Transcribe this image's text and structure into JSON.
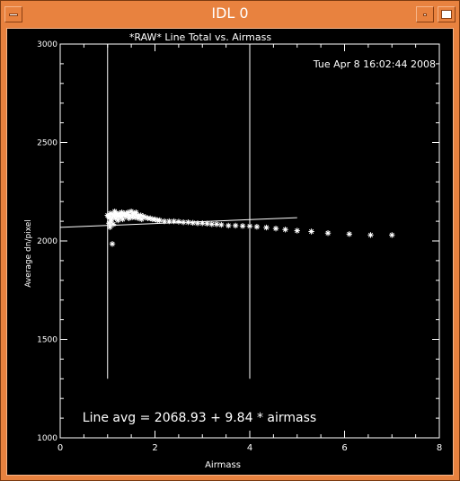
{
  "window": {
    "title": "IDL 0"
  },
  "chart_data": {
    "type": "scatter",
    "title": "*RAW* Line Total vs. Airmass",
    "timestamp": "Tue Apr  8 16:02:44 2008",
    "xlabel": "Airmass",
    "ylabel": "Average dn/pixel",
    "xlim": [
      0,
      8
    ],
    "ylim": [
      1000,
      3000
    ],
    "xticks": [
      0,
      2,
      4,
      6,
      8
    ],
    "yticks": [
      1000,
      1500,
      2000,
      2500,
      3000
    ],
    "vlines": [
      1.0,
      4.0
    ],
    "vline_range": [
      1300,
      3000
    ],
    "fit_label": "Line avg = 2068.93 + 9.84 * airmass",
    "fit": {
      "intercept": 2068.93,
      "slope": 9.84,
      "x_range": [
        0,
        5
      ]
    },
    "points": {
      "x": [
        1.0,
        1.02,
        1.04,
        1.06,
        1.08,
        1.1,
        1.12,
        1.15,
        1.18,
        1.2,
        1.22,
        1.25,
        1.28,
        1.3,
        1.33,
        1.36,
        1.4,
        1.43,
        1.46,
        1.5,
        1.53,
        1.56,
        1.6,
        1.63,
        1.66,
        1.7,
        1.75,
        1.8,
        1.85,
        1.9,
        1.95,
        2.0,
        2.05,
        2.1,
        2.2,
        2.3,
        2.4,
        2.5,
        2.6,
        2.7,
        2.8,
        2.9,
        3.0,
        3.1,
        3.2,
        3.3,
        3.4,
        3.55,
        3.7,
        3.85,
        4.0,
        4.15,
        4.35,
        4.55,
        4.75,
        5.0,
        5.3,
        5.65,
        6.1,
        6.55,
        7.0,
        1.03,
        1.07,
        1.12,
        1.17,
        1.22,
        1.27,
        1.32,
        1.38,
        1.45,
        1.52,
        1.58,
        1.65,
        1.72,
        1.05,
        1.1,
        1.15
      ],
      "y": [
        2130,
        2125,
        2120,
        2140,
        2110,
        2135,
        2125,
        2130,
        2140,
        2135,
        2125,
        2140,
        2130,
        2145,
        2130,
        2140,
        2135,
        2145,
        2130,
        2150,
        2135,
        2140,
        2145,
        2130,
        2125,
        2130,
        2125,
        2120,
        2115,
        2115,
        2110,
        2110,
        2105,
        2105,
        2100,
        2100,
        2100,
        2098,
        2095,
        2095,
        2092,
        2090,
        2090,
        2088,
        2085,
        2085,
        2082,
        2078,
        2078,
        2076,
        2075,
        2072,
        2068,
        2063,
        2058,
        2052,
        2048,
        2040,
        2035,
        2030,
        2030,
        2090,
        2100,
        2085,
        2115,
        2105,
        2120,
        2110,
        2125,
        2115,
        2120,
        2120,
        2115,
        2110,
        2070,
        1985,
        2150
      ]
    }
  }
}
